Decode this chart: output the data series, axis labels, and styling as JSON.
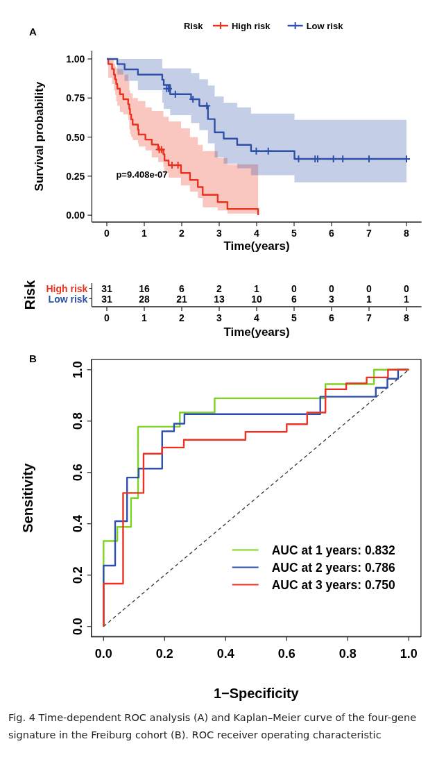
{
  "chart_data": [
    {
      "type": "step",
      "title": "A",
      "xlabel": "Time(years)",
      "ylabel": "Survival probability",
      "legend_title": "Risk",
      "legend": "top",
      "xlim": [
        -0.4,
        8.4
      ],
      "ylim": [
        -0.044,
        1.053
      ],
      "xticks": [
        0,
        1,
        2,
        3,
        4,
        5,
        6,
        7,
        8
      ],
      "yticks": [
        {
          "value": 0,
          "label": "0.00"
        },
        {
          "value": 0.25,
          "label": "0.25"
        },
        {
          "value": 0.5,
          "label": "0.50"
        },
        {
          "value": 0.75,
          "label": "0.75"
        },
        {
          "value": 1,
          "label": "1.00"
        }
      ],
      "annotations": [
        "p=9.408e-07"
      ],
      "series": [
        {
          "name": "High risk",
          "color": "#e8321e",
          "x": [
            0,
            0.04,
            0.14,
            0.19,
            0.22,
            0.25,
            0.28,
            0.35,
            0.44,
            0.57,
            0.6,
            0.62,
            0.65,
            0.69,
            0.83,
            0.85,
            1.03,
            1.2,
            1.37,
            1.51,
            1.54,
            1.65,
            1.98,
            2.22,
            2.43,
            2.56,
            2.96,
            3.22,
            4.04
          ],
          "values": [
            1,
            0.967,
            0.935,
            0.9,
            0.87,
            0.84,
            0.81,
            0.774,
            0.742,
            0.71,
            0.68,
            0.645,
            0.613,
            0.58,
            0.548,
            0.516,
            0.484,
            0.452,
            0.42,
            0.39,
            0.35,
            0.32,
            0.27,
            0.226,
            0.18,
            0.13,
            0.084,
            0.04,
            0
          ],
          "lower": [
            1,
            0.88,
            0.84,
            0.8,
            0.77,
            0.73,
            0.7,
            0.66,
            0.645,
            0.61,
            0.55,
            0.52,
            0.5,
            0.48,
            0.46,
            0.44,
            0.415,
            0.37,
            0.34,
            0.31,
            0.27,
            0.24,
            0.19,
            0.15,
            0.11,
            0.05,
            0.03,
            0.01,
            0
          ],
          "upper": [
            1,
            1,
            1,
            0.97,
            0.95,
            0.94,
            0.936,
            0.936,
            0.9,
            0.86,
            0.8,
            0.78,
            0.78,
            0.75,
            0.73,
            0.73,
            0.69,
            0.667,
            0.667,
            0.63,
            0.63,
            0.6,
            0.556,
            0.5,
            0.45,
            0.41,
            0.366,
            0.326,
            0.3
          ]
        },
        {
          "name": "Low risk",
          "color": "#2e4fa8",
          "x": [
            0,
            0.28,
            0.475,
            0.83,
            1.48,
            1.52,
            1.69,
            2.25,
            2.47,
            2.7,
            2.88,
            3.12,
            3.48,
            3.85,
            5.01,
            8
          ],
          "values": [
            1,
            0.967,
            0.933,
            0.9,
            0.867,
            0.833,
            0.774,
            0.742,
            0.7,
            0.615,
            0.53,
            0.49,
            0.45,
            0.41,
            0.36,
            0.36
          ],
          "lower": [
            1,
            0.9,
            0.86,
            0.8,
            0.72,
            0.68,
            0.64,
            0.59,
            0.545,
            0.46,
            0.37,
            0.33,
            0.3,
            0.256,
            0.21,
            0.21
          ],
          "upper": [
            1,
            1,
            1,
            1,
            0.94,
            0.94,
            0.94,
            0.91,
            0.87,
            0.83,
            0.76,
            0.72,
            0.69,
            0.65,
            0.61,
            0.61
          ]
        },
        {
          "type": "scatter",
          "marker": "cross",
          "color": "#e8321e",
          "x": [
            1.4,
            1.46,
            1.74,
            1.9
          ],
          "values": [
            0.42,
            0.42,
            0.32,
            0.32
          ]
        },
        {
          "type": "scatter",
          "marker": "cross",
          "color": "#2e4fa8",
          "x": [
            1.6,
            1.65,
            1.83,
            2.3,
            2.67,
            3.99,
            4.31,
            5.12,
            5.56,
            5.63,
            6.05,
            6.3,
            7,
            8
          ],
          "values": [
            0.81,
            0.81,
            0.774,
            0.742,
            0.7,
            0.41,
            0.41,
            0.36,
            0.36,
            0.36,
            0.36,
            0.36,
            0.36,
            0.36
          ]
        }
      ]
    },
    {
      "type": "heatmap",
      "xlabel": "Time(years)",
      "ylabel": "Risk",
      "categories": [
        "0",
        "1",
        "2",
        "3",
        "4",
        "5",
        "6",
        "7",
        "8"
      ],
      "y_categories": [
        "High risk",
        "Low risk"
      ],
      "colors": [
        "#e8321e",
        "#2e4fa8"
      ],
      "data_labels": true,
      "cells": [
        [
          31,
          16,
          6,
          2,
          1,
          0,
          0,
          0,
          0
        ],
        [
          31,
          28,
          21,
          13,
          10,
          6,
          3,
          1,
          1
        ]
      ]
    },
    {
      "type": "line",
      "title": "B",
      "xlabel": "1−Specificity",
      "ylabel": "Sensitivity",
      "legend": "bottom right",
      "xlim": [
        -0.04,
        1.04
      ],
      "ylim": [
        -0.04,
        1.04
      ],
      "xticks": [
        {
          "value": 0,
          "label": "0.0"
        },
        {
          "value": 0.2,
          "label": "0.2"
        },
        {
          "value": 0.4,
          "label": "0.4"
        },
        {
          "value": 0.6,
          "label": "0.6"
        },
        {
          "value": 0.8,
          "label": "0.8"
        },
        {
          "value": 1,
          "label": "1.0"
        }
      ],
      "yticks": [
        {
          "value": 0,
          "label": "0.0"
        },
        {
          "value": 0.2,
          "label": "0.2"
        },
        {
          "value": 0.4,
          "label": "0.4"
        },
        {
          "value": 0.6,
          "label": "0.6"
        },
        {
          "value": 0.8,
          "label": "0.8"
        },
        {
          "value": 1,
          "label": "1.0"
        }
      ],
      "annotations": [
        "Fig. 4  Time-dependent ROC analysis (A) and Kaplan–Meier curve of the four-gene signature in the Freiburg cohort (B). ROC receiver operating characteristic"
      ],
      "series": [
        {
          "type": "line",
          "line_style": "dashed",
          "color": "#333333",
          "x": [
            0,
            1
          ],
          "values": [
            0,
            1
          ]
        },
        {
          "name": "AUC at 1 years: 0.832",
          "color": "#7ed321",
          "x": [
            0,
            0,
            0.045,
            0.045,
            0.09,
            0.09,
            0.113,
            0.113,
            0.25,
            0.25,
            0.364,
            0.364,
            0.727,
            0.727,
            0.886,
            0.886,
            1
          ],
          "values": [
            0,
            0.333,
            0.333,
            0.388,
            0.388,
            0.5,
            0.5,
            0.778,
            0.778,
            0.833,
            0.833,
            0.889,
            0.889,
            0.944,
            0.944,
            1,
            1
          ]
        },
        {
          "name": "AUC at 2 years: 0.786",
          "color": "#2e4fb0",
          "x": [
            0,
            0,
            0.038,
            0.038,
            0.077,
            0.077,
            0.115,
            0.115,
            0.192,
            0.192,
            0.231,
            0.231,
            0.265,
            0.265,
            0.71,
            0.71,
            0.892,
            0.892,
            0.93,
            0.93,
            0.965,
            0.965,
            1
          ],
          "values": [
            0,
            0.237,
            0.237,
            0.41,
            0.41,
            0.58,
            0.58,
            0.615,
            0.615,
            0.76,
            0.76,
            0.79,
            0.79,
            0.827,
            0.827,
            0.895,
            0.895,
            0.93,
            0.93,
            0.965,
            0.965,
            1,
            1
          ]
        },
        {
          "name": "AUC at 3 years: 0.750",
          "color": "#ea3323",
          "x": [
            0,
            0,
            0.064,
            0.064,
            0.131,
            0.131,
            0.192,
            0.192,
            0.263,
            0.263,
            0.465,
            0.465,
            0.6,
            0.6,
            0.667,
            0.667,
            0.727,
            0.727,
            0.795,
            0.795,
            0.862,
            0.862,
            0.932,
            0.932,
            1
          ],
          "values": [
            0,
            0.167,
            0.167,
            0.52,
            0.52,
            0.673,
            0.673,
            0.697,
            0.697,
            0.727,
            0.727,
            0.758,
            0.758,
            0.788,
            0.788,
            0.833,
            0.833,
            0.924,
            0.924,
            0.947,
            0.947,
            0.97,
            0.97,
            1,
            1
          ]
        }
      ]
    }
  ]
}
